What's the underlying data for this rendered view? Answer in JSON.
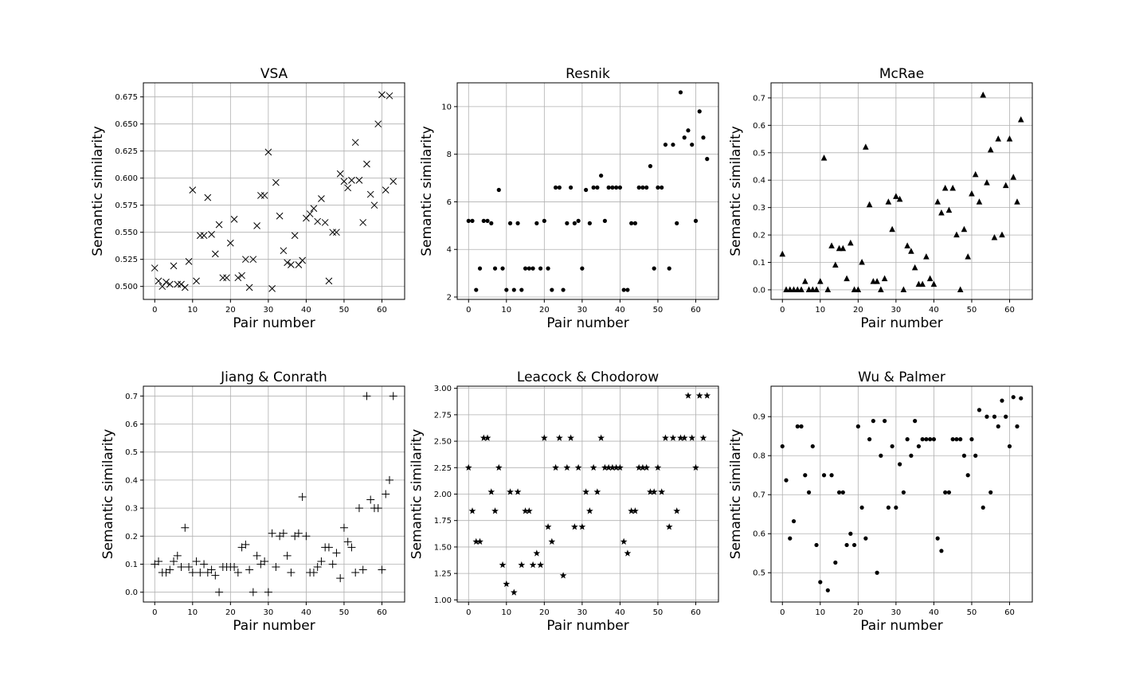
{
  "chart_data": [
    {
      "type": "scatter",
      "title": "VSA",
      "xlabel": "Pair number",
      "ylabel": "Semantic similarity",
      "marker": "x",
      "xlim": [
        -3,
        66
      ],
      "ylim": [
        0.488,
        0.688
      ],
      "xticks": [
        0,
        10,
        20,
        30,
        40,
        50,
        60
      ],
      "yticks": [
        0.5,
        0.525,
        0.55,
        0.575,
        0.6,
        0.625,
        0.65,
        0.675
      ],
      "ytick_labels": [
        "0.500",
        "0.525",
        "0.550",
        "0.575",
        "0.600",
        "0.625",
        "0.650",
        "0.675"
      ],
      "grid": true,
      "x": [
        0,
        1,
        2,
        3,
        4,
        5,
        6,
        7,
        8,
        9,
        10,
        11,
        12,
        13,
        14,
        15,
        16,
        17,
        18,
        19,
        20,
        21,
        22,
        23,
        24,
        25,
        26,
        27,
        28,
        29,
        30,
        31,
        32,
        33,
        34,
        35,
        36,
        37,
        38,
        39,
        40,
        41,
        42,
        43,
        44,
        45,
        46,
        47,
        48,
        49,
        50,
        51,
        52,
        53,
        54,
        55,
        56,
        57,
        58,
        59,
        60,
        61,
        62,
        63
      ],
      "y": [
        0.517,
        0.505,
        0.5,
        0.504,
        0.502,
        0.519,
        0.502,
        0.502,
        0.499,
        0.523,
        0.589,
        0.505,
        0.547,
        0.547,
        0.582,
        0.548,
        0.53,
        0.557,
        0.508,
        0.508,
        0.54,
        0.562,
        0.508,
        0.51,
        0.525,
        0.499,
        0.525,
        0.556,
        0.584,
        0.584,
        0.624,
        0.498,
        0.596,
        0.565,
        0.533,
        0.522,
        0.52,
        0.547,
        0.52,
        0.524,
        0.563,
        0.567,
        0.572,
        0.56,
        0.581,
        0.559,
        0.505,
        0.55,
        0.55,
        0.604,
        0.597,
        0.591,
        0.598,
        0.633,
        0.598,
        0.559,
        0.613,
        0.585,
        0.575,
        0.65,
        0.677,
        0.589,
        0.676,
        0.597
      ]
    },
    {
      "type": "scatter",
      "title": "Resnik",
      "xlabel": "Pair number",
      "ylabel": "Semantic similarity",
      "marker": "dot",
      "xlim": [
        -3,
        66
      ],
      "ylim": [
        1.9,
        11.0
      ],
      "xticks": [
        0,
        10,
        20,
        30,
        40,
        50,
        60
      ],
      "yticks": [
        2,
        4,
        6,
        8,
        10
      ],
      "ytick_labels": [
        "2",
        "4",
        "6",
        "8",
        "10"
      ],
      "grid": true,
      "x": [
        0,
        1,
        2,
        3,
        4,
        5,
        6,
        7,
        8,
        9,
        10,
        11,
        12,
        13,
        14,
        15,
        16,
        17,
        18,
        19,
        20,
        21,
        22,
        23,
        24,
        25,
        26,
        27,
        28,
        29,
        30,
        31,
        32,
        33,
        34,
        35,
        36,
        37,
        38,
        39,
        40,
        41,
        42,
        43,
        44,
        45,
        46,
        47,
        48,
        49,
        50,
        51,
        52,
        53,
        54,
        55,
        56,
        57,
        58,
        59,
        60,
        61,
        62,
        63
      ],
      "y": [
        5.2,
        5.2,
        2.3,
        3.2,
        5.2,
        5.2,
        5.1,
        3.2,
        6.5,
        3.2,
        2.3,
        5.1,
        2.3,
        5.1,
        2.3,
        3.2,
        3.2,
        3.2,
        5.1,
        3.2,
        5.2,
        3.2,
        2.3,
        6.6,
        6.6,
        2.3,
        5.1,
        6.6,
        5.1,
        5.2,
        3.2,
        6.5,
        5.1,
        6.6,
        6.6,
        7.1,
        5.2,
        6.6,
        6.6,
        6.6,
        6.6,
        2.3,
        2.3,
        5.1,
        5.1,
        6.6,
        6.6,
        6.6,
        7.5,
        3.2,
        6.6,
        6.6,
        8.4,
        3.2,
        8.4,
        5.1,
        10.6,
        8.7,
        9.0,
        8.4,
        5.2,
        9.8,
        8.7,
        7.8
      ]
    },
    {
      "type": "scatter",
      "title": "McRae",
      "xlabel": "Pair number",
      "ylabel": "Semantic similarity",
      "marker": "triangle",
      "xlim": [
        -3,
        66
      ],
      "ylim": [
        -0.035,
        0.755
      ],
      "xticks": [
        0,
        10,
        20,
        30,
        40,
        50,
        60
      ],
      "yticks": [
        0.0,
        0.1,
        0.2,
        0.3,
        0.4,
        0.5,
        0.6,
        0.7
      ],
      "ytick_labels": [
        "0.0",
        "0.1",
        "0.2",
        "0.3",
        "0.4",
        "0.5",
        "0.6",
        "0.7"
      ],
      "grid": true,
      "x": [
        0,
        1,
        2,
        3,
        4,
        5,
        6,
        7,
        8,
        9,
        10,
        11,
        12,
        13,
        14,
        15,
        16,
        17,
        18,
        19,
        20,
        21,
        22,
        23,
        24,
        25,
        26,
        27,
        28,
        29,
        30,
        31,
        32,
        33,
        34,
        35,
        36,
        37,
        38,
        39,
        40,
        41,
        42,
        43,
        44,
        45,
        46,
        47,
        48,
        49,
        50,
        51,
        52,
        53,
        54,
        55,
        56,
        57,
        58,
        59,
        60,
        61,
        62,
        63
      ],
      "y": [
        0.13,
        0.0,
        0.0,
        0.0,
        0.0,
        0.0,
        0.03,
        0.0,
        0.0,
        0.0,
        0.03,
        0.48,
        0.0,
        0.16,
        0.09,
        0.15,
        0.15,
        0.04,
        0.17,
        0.0,
        0.0,
        0.1,
        0.52,
        0.31,
        0.03,
        0.03,
        0.0,
        0.04,
        0.32,
        0.22,
        0.34,
        0.33,
        0.0,
        0.16,
        0.14,
        0.08,
        0.02,
        0.02,
        0.12,
        0.04,
        0.02,
        0.32,
        0.28,
        0.37,
        0.29,
        0.37,
        0.2,
        0.0,
        0.22,
        0.12,
        0.35,
        0.42,
        0.32,
        0.71,
        0.39,
        0.51,
        0.19,
        0.55,
        0.2,
        0.38,
        0.55,
        0.41,
        0.32,
        0.62
      ]
    },
    {
      "type": "scatter",
      "title": "Jiang & Conrath",
      "xlabel": "Pair number",
      "ylabel": "Semantic similarity",
      "marker": "plus",
      "xlim": [
        -3,
        66
      ],
      "ylim": [
        -0.035,
        0.735
      ],
      "xticks": [
        0,
        10,
        20,
        30,
        40,
        50,
        60
      ],
      "yticks": [
        0.0,
        0.1,
        0.2,
        0.3,
        0.4,
        0.5,
        0.6,
        0.7
      ],
      "ytick_labels": [
        "0.0",
        "0.1",
        "0.2",
        "0.3",
        "0.4",
        "0.5",
        "0.6",
        "0.7"
      ],
      "grid": true,
      "x": [
        0,
        1,
        2,
        3,
        4,
        5,
        6,
        7,
        8,
        9,
        10,
        11,
        12,
        13,
        14,
        15,
        16,
        17,
        18,
        19,
        20,
        21,
        22,
        23,
        24,
        25,
        26,
        27,
        28,
        29,
        30,
        31,
        32,
        33,
        34,
        35,
        36,
        37,
        38,
        39,
        40,
        41,
        42,
        43,
        44,
        45,
        46,
        47,
        48,
        49,
        50,
        51,
        52,
        53,
        54,
        55,
        56,
        57,
        58,
        59,
        60,
        61,
        62,
        63
      ],
      "y": [
        0.1,
        0.11,
        0.07,
        0.07,
        0.08,
        0.11,
        0.13,
        0.09,
        0.23,
        0.09,
        0.07,
        0.11,
        0.07,
        0.1,
        0.07,
        0.08,
        0.06,
        0.0,
        0.09,
        0.09,
        0.09,
        0.09,
        0.07,
        0.16,
        0.17,
        0.08,
        0.0,
        0.13,
        0.1,
        0.11,
        0.0,
        0.21,
        0.09,
        0.2,
        0.21,
        0.13,
        0.07,
        0.2,
        0.21,
        0.34,
        0.2,
        0.07,
        0.07,
        0.09,
        0.11,
        0.16,
        0.16,
        0.1,
        0.14,
        0.05,
        0.23,
        0.18,
        0.16,
        0.07,
        0.3,
        0.08,
        0.7,
        0.33,
        0.3,
        0.3,
        0.08,
        0.35,
        0.4,
        0.7
      ]
    },
    {
      "type": "scatter",
      "title": "Leacock & Chodorow",
      "xlabel": "Pair number",
      "ylabel": "Semantic similarity",
      "marker": "star",
      "xlim": [
        -3,
        66
      ],
      "ylim": [
        0.98,
        3.02
      ],
      "xticks": [
        0,
        10,
        20,
        30,
        40,
        50,
        60
      ],
      "yticks": [
        1.0,
        1.25,
        1.5,
        1.75,
        2.0,
        2.25,
        2.5,
        2.75,
        3.0
      ],
      "ytick_labels": [
        "1.00",
        "1.25",
        "1.50",
        "1.75",
        "2.00",
        "2.25",
        "2.50",
        "2.75",
        "3.00"
      ],
      "grid": true,
      "x": [
        0,
        1,
        2,
        3,
        4,
        5,
        6,
        7,
        8,
        9,
        10,
        11,
        12,
        13,
        14,
        15,
        16,
        17,
        18,
        19,
        20,
        21,
        22,
        23,
        24,
        25,
        26,
        27,
        28,
        29,
        30,
        31,
        32,
        33,
        34,
        35,
        36,
        37,
        38,
        39,
        40,
        41,
        42,
        43,
        44,
        45,
        46,
        47,
        48,
        49,
        50,
        51,
        52,
        53,
        54,
        55,
        56,
        57,
        58,
        59,
        60,
        61,
        62,
        63
      ],
      "y": [
        2.25,
        1.84,
        1.55,
        1.55,
        2.53,
        2.53,
        2.02,
        1.84,
        2.25,
        1.33,
        1.15,
        2.02,
        1.07,
        2.02,
        1.33,
        1.84,
        1.84,
        1.33,
        1.44,
        1.33,
        2.53,
        1.69,
        1.55,
        2.25,
        2.53,
        1.23,
        2.25,
        2.53,
        1.69,
        2.25,
        1.69,
        2.02,
        1.84,
        2.25,
        2.02,
        2.53,
        2.25,
        2.25,
        2.25,
        2.25,
        2.25,
        1.55,
        1.44,
        1.84,
        1.84,
        2.25,
        2.25,
        2.25,
        2.02,
        2.02,
        2.25,
        2.02,
        2.53,
        1.69,
        2.53,
        1.84,
        2.53,
        2.53,
        2.93,
        2.53,
        2.25,
        2.93,
        2.53,
        2.93
      ]
    },
    {
      "type": "scatter",
      "title": "Wu & Palmer",
      "xlabel": "Pair number",
      "ylabel": "Semantic similarity",
      "marker": "dot",
      "xlim": [
        -3,
        66
      ],
      "ylim": [
        0.425,
        0.978
      ],
      "xticks": [
        0,
        10,
        20,
        30,
        40,
        50,
        60
      ],
      "yticks": [
        0.5,
        0.6,
        0.7,
        0.8,
        0.9
      ],
      "ytick_labels": [
        "0.5",
        "0.6",
        "0.7",
        "0.8",
        "0.9"
      ],
      "grid": true,
      "x": [
        0,
        1,
        2,
        3,
        4,
        5,
        6,
        7,
        8,
        9,
        10,
        11,
        12,
        13,
        14,
        15,
        16,
        17,
        18,
        19,
        20,
        21,
        22,
        23,
        24,
        25,
        26,
        27,
        28,
        29,
        30,
        31,
        32,
        33,
        34,
        35,
        36,
        37,
        38,
        39,
        40,
        41,
        42,
        43,
        44,
        45,
        46,
        47,
        48,
        49,
        50,
        51,
        52,
        53,
        54,
        55,
        56,
        57,
        58,
        59,
        60,
        61,
        62,
        63
      ],
      "y": [
        0.824,
        0.737,
        0.588,
        0.632,
        0.875,
        0.875,
        0.75,
        0.706,
        0.824,
        0.571,
        0.476,
        0.75,
        0.455,
        0.75,
        0.526,
        0.706,
        0.706,
        0.571,
        0.6,
        0.571,
        0.875,
        0.667,
        0.588,
        0.842,
        0.889,
        0.5,
        0.8,
        0.889,
        0.667,
        0.824,
        0.667,
        0.778,
        0.706,
        0.842,
        0.8,
        0.889,
        0.824,
        0.842,
        0.842,
        0.842,
        0.842,
        0.588,
        0.556,
        0.706,
        0.706,
        0.842,
        0.842,
        0.842,
        0.8,
        0.75,
        0.842,
        0.8,
        0.917,
        0.667,
        0.9,
        0.706,
        0.9,
        0.875,
        0.941,
        0.9,
        0.824,
        0.95,
        0.875,
        0.947
      ]
    }
  ]
}
